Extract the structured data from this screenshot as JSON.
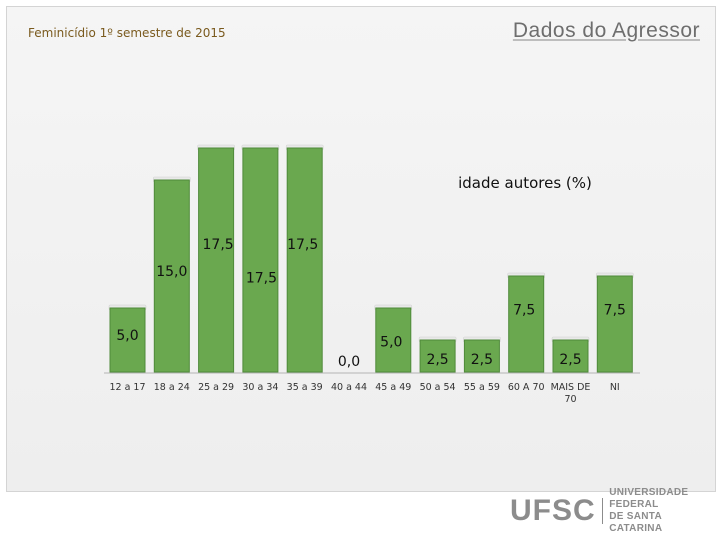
{
  "header": {
    "subtitle": "Feminicídio 1º semestre de 2015",
    "title": "Dados do Agressor"
  },
  "logo": {
    "main": "UFSC",
    "sub_line1": "UNIVERSIDADE FEDERAL",
    "sub_line2": "DE SANTA CATARINA"
  },
  "chart_data": {
    "type": "bar",
    "title": "idade autores (%)",
    "categories": [
      "12 a 17",
      "18 a 24",
      "25 a 29",
      "30 a 34",
      "35 a 39",
      "40 a 44",
      "45 a 49",
      "50 a 54",
      "55 a 59",
      "60 A 70",
      "MAIS DE 70",
      "NI"
    ],
    "values": [
      5.0,
      15.0,
      17.5,
      17.5,
      17.5,
      0.0,
      5.0,
      2.5,
      2.5,
      7.5,
      2.5,
      7.5
    ],
    "value_labels": [
      "5,0",
      "15,0",
      "17,5",
      "17,5",
      "17,5",
      "0,0",
      "5,0",
      "2,5",
      "2,5",
      "7,5",
      "2,5",
      "7,5"
    ],
    "ylim": [
      0,
      17.5
    ],
    "grid": false,
    "legend": "none",
    "colors": {
      "bar": "#6aa84f",
      "bar_edge": "#4f8a3a",
      "bar_top": "#e9e9e9"
    }
  }
}
